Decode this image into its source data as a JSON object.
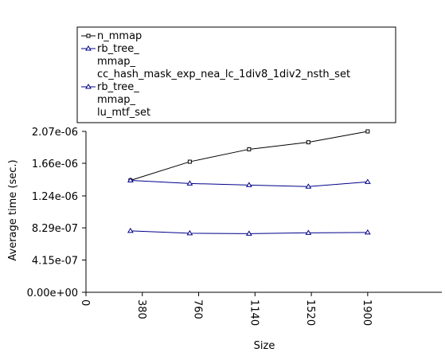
{
  "chart_data": {
    "type": "line",
    "title": "",
    "xlabel": "Size",
    "ylabel": "Average time (sec.)",
    "xlim": [
      0,
      2400
    ],
    "ylim": [
      0,
      2.07e-06
    ],
    "xticks": [
      0,
      380,
      760,
      1140,
      1520,
      1900
    ],
    "xtick_labels": [
      "0",
      "380",
      "760",
      "1140",
      "1520",
      "1900"
    ],
    "yticks": [
      0,
      4.15e-07,
      8.29e-07,
      1.24e-06,
      1.66e-06,
      2.07e-06
    ],
    "ytick_labels": [
      "0.00e+00",
      "4.15e-07",
      "8.29e-07",
      "1.24e-06",
      "1.66e-06",
      "2.07e-06"
    ],
    "legend_position": "top",
    "series": [
      {
        "name": "n_mmap",
        "legend_lines": [
          "n_mmap"
        ],
        "color": "#000000",
        "marker": "square",
        "x": [
          300,
          700,
          1100,
          1500,
          1900
        ],
        "y": [
          1.44e-06,
          1.68e-06,
          1.84e-06,
          1.93e-06,
          2.07e-06
        ]
      },
      {
        "name": "rb_tree_mmap_cc_hash_mask_exp_nea_lc_1div8_1div2_nsth_set",
        "legend_lines": [
          "rb_tree_",
          "mmap_",
          "cc_hash_mask_exp_nea_lc_1div8_1div2_nsth_set"
        ],
        "color": "#00008b",
        "marker": "triangle",
        "x": [
          300,
          700,
          1100,
          1500,
          1900
        ],
        "y": [
          1.44e-06,
          1.4e-06,
          1.38e-06,
          1.36e-06,
          1.42e-06
        ]
      },
      {
        "name": "rb_tree_mmap_lu_mtf_set",
        "legend_lines": [
          "rb_tree_",
          "mmap_",
          "lu_mtf_set"
        ],
        "color": "#00008b",
        "marker": "triangle",
        "x": [
          300,
          700,
          1100,
          1500,
          1900
        ],
        "y": [
          7.9e-07,
          7.6e-07,
          7.55e-07,
          7.65e-07,
          7.7e-07
        ]
      }
    ]
  }
}
